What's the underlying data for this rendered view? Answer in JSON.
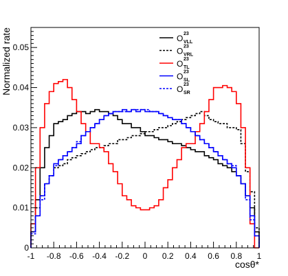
{
  "chart_data": {
    "type": "line",
    "style": "step-histogram",
    "title": "",
    "xlabel": "cosθ*",
    "ylabel": "Normalized rate",
    "xlim": [
      -1,
      1
    ],
    "ylim": [
      0,
      0.055
    ],
    "x_ticks": [
      -1,
      -0.8,
      -0.6,
      -0.4,
      -0.2,
      0,
      0.2,
      0.4,
      0.6,
      0.8,
      1
    ],
    "x_tick_labels": [
      "-1",
      "-0.8",
      "-0.6",
      "-0.4",
      "-0.2",
      "0",
      "0.2",
      "0.4",
      "0.6",
      "0.8",
      "1"
    ],
    "y_ticks": [
      0,
      0.01,
      0.02,
      0.03,
      0.04,
      0.05
    ],
    "y_tick_labels": [
      "0",
      "0.01",
      "0.02",
      "0.03",
      "0.04",
      "0.05"
    ],
    "grid": false,
    "legend_position": "top-right",
    "bin_edges": [
      -1.0,
      -0.96,
      -0.92,
      -0.88,
      -0.84,
      -0.8,
      -0.76,
      -0.72,
      -0.68,
      -0.64,
      -0.6,
      -0.56,
      -0.52,
      -0.48,
      -0.44,
      -0.4,
      -0.36,
      -0.32,
      -0.28,
      -0.24,
      -0.2,
      -0.16,
      -0.12,
      -0.08,
      -0.04,
      0.0,
      0.04,
      0.08,
      0.12,
      0.16,
      0.2,
      0.24,
      0.28,
      0.32,
      0.36,
      0.4,
      0.44,
      0.48,
      0.52,
      0.56,
      0.6,
      0.64,
      0.68,
      0.72,
      0.76,
      0.8,
      0.84,
      0.88,
      0.92,
      0.96,
      1.0
    ],
    "series": [
      {
        "name_main": "O",
        "name_sup": "23",
        "name_sub": "VLL",
        "color": "#000000",
        "dash": "solid",
        "values": [
          0.004,
          0.012,
          0.02,
          0.025,
          0.028,
          0.031,
          0.0315,
          0.032,
          0.033,
          0.0335,
          0.034,
          0.034,
          0.0335,
          0.034,
          0.0345,
          0.034,
          0.034,
          0.0335,
          0.033,
          0.032,
          0.031,
          0.031,
          0.03,
          0.03,
          0.029,
          0.028,
          0.028,
          0.0275,
          0.027,
          0.027,
          0.0265,
          0.026,
          0.026,
          0.0255,
          0.025,
          0.0245,
          0.024,
          0.024,
          0.023,
          0.0225,
          0.022,
          0.021,
          0.0205,
          0.02,
          0.019,
          0.018,
          0.016,
          0.013,
          0.01,
          0.004
        ]
      },
      {
        "name_main": "O",
        "name_sup": "23",
        "name_sub": "VRL",
        "color": "#000000",
        "dash": "dotted",
        "values": [
          0.004,
          0.01,
          0.013,
          0.016,
          0.018,
          0.02,
          0.0205,
          0.021,
          0.022,
          0.0225,
          0.023,
          0.0235,
          0.024,
          0.0245,
          0.025,
          0.025,
          0.0255,
          0.026,
          0.026,
          0.027,
          0.027,
          0.0275,
          0.028,
          0.028,
          0.0285,
          0.029,
          0.029,
          0.0295,
          0.03,
          0.03,
          0.0305,
          0.031,
          0.0315,
          0.032,
          0.0325,
          0.033,
          0.0335,
          0.034,
          0.033,
          0.032,
          0.0315,
          0.031,
          0.031,
          0.03,
          0.03,
          0.0295,
          0.026,
          0.019,
          0.014,
          0.005
        ]
      },
      {
        "name_main": "O",
        "name_sup": "23",
        "name_sub": "TL",
        "color": "#ff0000",
        "dash": "solid",
        "values": [
          0.006,
          0.02,
          0.03,
          0.036,
          0.039,
          0.041,
          0.0415,
          0.042,
          0.04,
          0.037,
          0.034,
          0.031,
          0.029,
          0.026,
          0.026,
          0.025,
          0.024,
          0.021,
          0.019,
          0.016,
          0.013,
          0.012,
          0.0105,
          0.01,
          0.0095,
          0.0095,
          0.01,
          0.0105,
          0.012,
          0.015,
          0.017,
          0.02,
          0.022,
          0.025,
          0.026,
          0.026,
          0.029,
          0.031,
          0.034,
          0.037,
          0.04,
          0.04,
          0.0405,
          0.04,
          0.039,
          0.036,
          0.03,
          0.02,
          0.006,
          0.0
        ]
      },
      {
        "name_main": "O",
        "name_sup": "23",
        "name_sub": "SL",
        "color": "#0000ff",
        "dash": "solid",
        "values": [
          0.004,
          0.008,
          0.013,
          0.016,
          0.018,
          0.021,
          0.022,
          0.023,
          0.024,
          0.025,
          0.026,
          0.028,
          0.029,
          0.03,
          0.031,
          0.032,
          0.033,
          0.0335,
          0.034,
          0.034,
          0.0345,
          0.034,
          0.0345,
          0.034,
          0.0345,
          0.034,
          0.034,
          0.034,
          0.0335,
          0.033,
          0.0325,
          0.032,
          0.032,
          0.031,
          0.03,
          0.029,
          0.028,
          0.027,
          0.026,
          0.025,
          0.024,
          0.023,
          0.022,
          0.021,
          0.02,
          0.018,
          0.016,
          0.013,
          0.008,
          0.003
        ]
      },
      {
        "name_main": "O",
        "name_sup": "23",
        "name_sub": "SR",
        "color": "#0000ff",
        "dash": "dotted",
        "values": [
          0.0035,
          0.008,
          0.012,
          0.016,
          0.018,
          0.0205,
          0.022,
          0.023,
          0.024,
          0.025,
          0.0265,
          0.028,
          0.029,
          0.03,
          0.031,
          0.032,
          0.033,
          0.0335,
          0.034,
          0.034,
          0.034,
          0.034,
          0.0345,
          0.0345,
          0.0345,
          0.0345,
          0.034,
          0.034,
          0.0335,
          0.033,
          0.0325,
          0.032,
          0.032,
          0.031,
          0.03,
          0.029,
          0.028,
          0.027,
          0.026,
          0.025,
          0.024,
          0.023,
          0.022,
          0.021,
          0.0205,
          0.018,
          0.016,
          0.012,
          0.007,
          0.003
        ]
      }
    ]
  }
}
